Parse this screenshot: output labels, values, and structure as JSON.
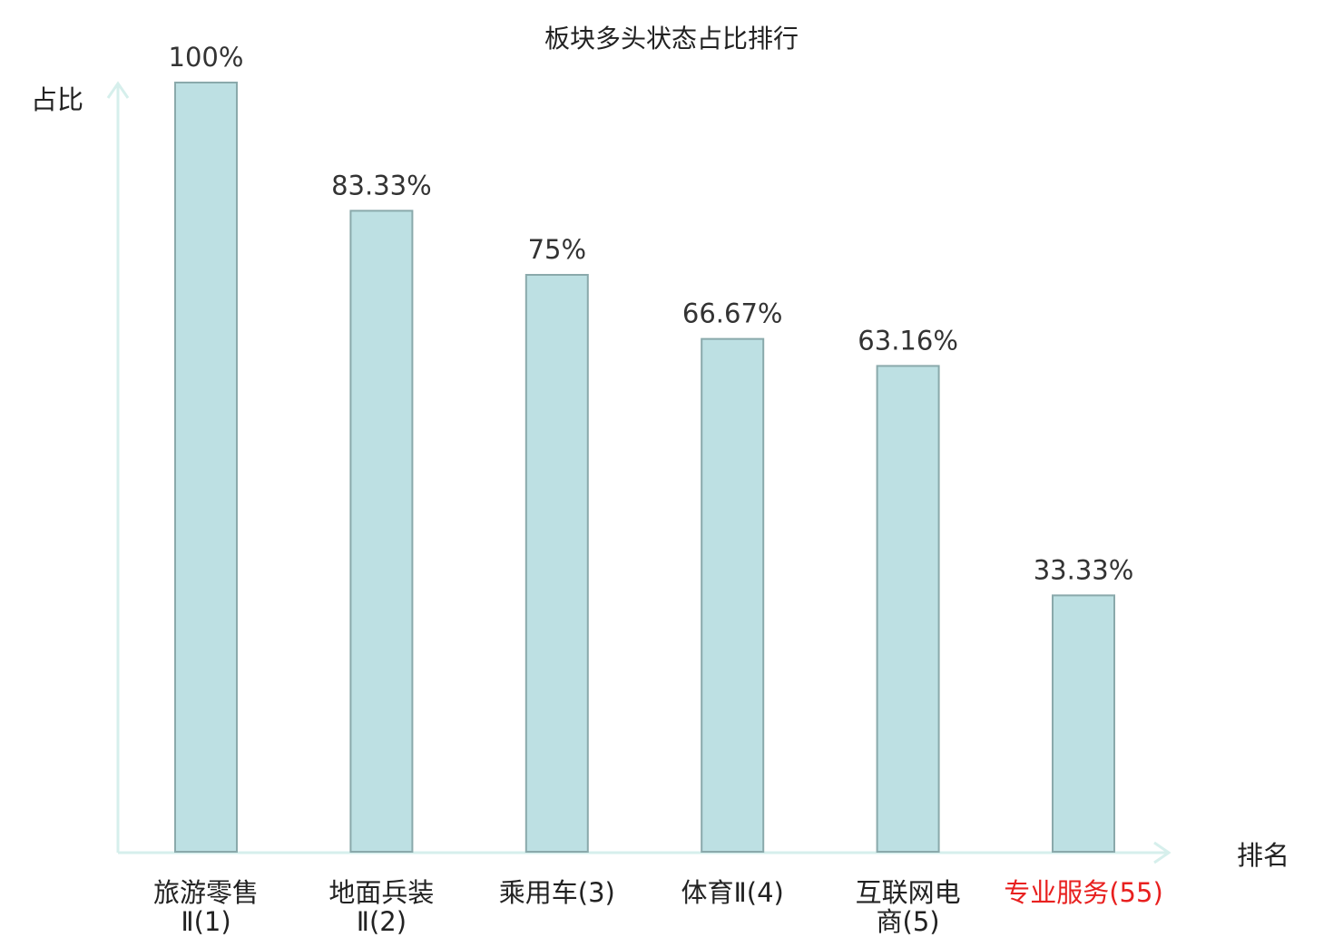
{
  "chart_data": {
    "type": "bar",
    "title": "板块多头状态占比排行",
    "ylabel": "占比",
    "xlabel": "排名",
    "ylim": [
      0,
      100
    ],
    "categories": [
      [
        "旅游零售",
        "Ⅱ(1)"
      ],
      [
        "地面兵装",
        "Ⅱ(2)"
      ],
      [
        "乘用车(3)"
      ],
      [
        "体育Ⅱ(4)"
      ],
      [
        "互联网电",
        "商(5)"
      ],
      [
        "专业服务(55)"
      ]
    ],
    "values": [
      100,
      83.33,
      75,
      66.67,
      63.16,
      33.33
    ],
    "value_labels": [
      "100%",
      "83.33%",
      "75%",
      "66.67%",
      "63.16%",
      "33.33%"
    ],
    "highlight_index": 5,
    "grid": false,
    "colors": {
      "bar_fill": "#bde0e3",
      "bar_stroke": "#8aa9ab",
      "axis": "#d6efec",
      "text": "#333333",
      "highlight_text": "#e8201f"
    }
  }
}
